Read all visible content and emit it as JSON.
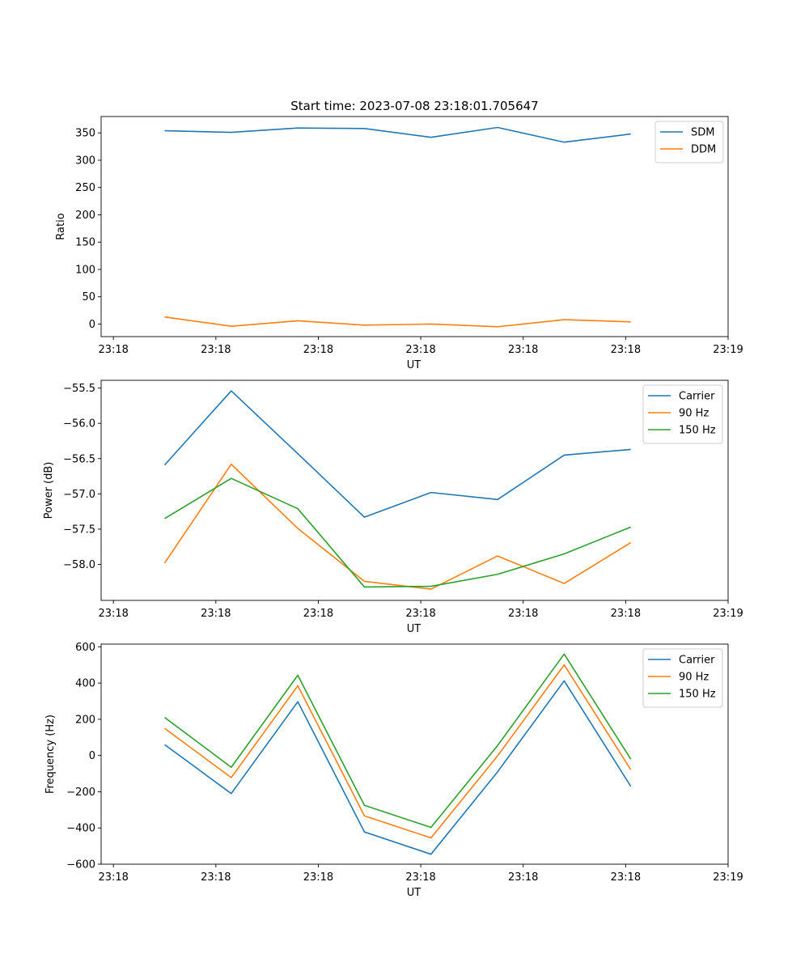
{
  "title": "Start time: 2023-07-08 23:18:01.705647",
  "colors": {
    "c0": "#1f77b4",
    "c1": "#ff7f0e",
    "c2": "#2ca02c"
  },
  "chart_data": [
    {
      "type": "line",
      "xlabel": "UT",
      "ylabel": "Ratio",
      "x_tick_labels": [
        "23:18",
        "23:18",
        "23:18",
        "23:18",
        "23:18",
        "23:18",
        "23:19"
      ],
      "x_tick_values": [
        0,
        1,
        2,
        3,
        4,
        5,
        6
      ],
      "xlim": [
        -0.12,
        6.0
      ],
      "x": [
        0.5,
        1.15,
        1.8,
        2.45,
        3.1,
        3.75,
        4.4,
        5.05
      ],
      "ylim": [
        -23,
        380
      ],
      "y_ticks": [
        0,
        50,
        100,
        150,
        200,
        250,
        300,
        350
      ],
      "y_tick_labels": [
        "0",
        "50",
        "100",
        "150",
        "200",
        "250",
        "300",
        "350"
      ],
      "legend": "top-right",
      "series": [
        {
          "name": "SDM",
          "color": "#1f77b4",
          "values": [
            354,
            351,
            359,
            358,
            342,
            360,
            333,
            348
          ]
        },
        {
          "name": "DDM",
          "color": "#ff7f0e",
          "values": [
            13,
            -4,
            6,
            -2,
            0,
            -5,
            8,
            4
          ]
        }
      ]
    },
    {
      "type": "line",
      "xlabel": "UT",
      "ylabel": "Power (dB)",
      "x_tick_labels": [
        "23:18",
        "23:18",
        "23:18",
        "23:18",
        "23:18",
        "23:18",
        "23:19"
      ],
      "x_tick_values": [
        0,
        1,
        2,
        3,
        4,
        5,
        6
      ],
      "xlim": [
        -0.12,
        6.0
      ],
      "x": [
        0.5,
        1.15,
        1.8,
        2.45,
        3.1,
        3.75,
        4.4,
        5.05
      ],
      "ylim": [
        -58.51,
        -55.39
      ],
      "y_ticks": [
        -58.0,
        -57.5,
        -57.0,
        -56.5,
        -56.0,
        -55.5
      ],
      "y_tick_labels": [
        "−58.0",
        "−57.5",
        "−57.0",
        "−56.5",
        "−56.0",
        "−55.5"
      ],
      "legend": "top-right",
      "series": [
        {
          "name": "Carrier",
          "color": "#1f77b4",
          "values": [
            -56.59,
            -55.54,
            -56.43,
            -57.33,
            -56.98,
            -57.08,
            -56.45,
            -56.37
          ]
        },
        {
          "name": "90 Hz",
          "color": "#ff7f0e",
          "values": [
            -57.98,
            -56.58,
            -57.49,
            -58.24,
            -58.35,
            -57.88,
            -58.27,
            -57.69
          ]
        },
        {
          "name": "150 Hz",
          "color": "#2ca02c",
          "values": [
            -57.35,
            -56.78,
            -57.21,
            -58.32,
            -58.31,
            -58.14,
            -57.85,
            -57.47
          ]
        }
      ]
    },
    {
      "type": "line",
      "xlabel": "UT",
      "ylabel": "Frequency (Hz)",
      "x_tick_labels": [
        "23:18",
        "23:18",
        "23:18",
        "23:18",
        "23:18",
        "23:18",
        "23:19"
      ],
      "x_tick_values": [
        0,
        1,
        2,
        3,
        4,
        5,
        6
      ],
      "xlim": [
        -0.12,
        6.0
      ],
      "x": [
        0.5,
        1.15,
        1.8,
        2.45,
        3.1,
        3.75,
        4.4,
        5.05
      ],
      "ylim": [
        -600,
        615
      ],
      "y_ticks": [
        -600,
        -400,
        -200,
        0,
        200,
        400,
        600
      ],
      "y_tick_labels": [
        "−600",
        "−400",
        "−200",
        "0",
        "200",
        "400",
        "600"
      ],
      "legend": "top-right",
      "series": [
        {
          "name": "Carrier",
          "color": "#1f77b4",
          "values": [
            60,
            -210,
            297,
            -422,
            -545,
            -90,
            412,
            -170
          ]
        },
        {
          "name": "90 Hz",
          "color": "#ff7f0e",
          "values": [
            150,
            -122,
            385,
            -333,
            -455,
            -2,
            500,
            -78
          ]
        },
        {
          "name": "150 Hz",
          "color": "#2ca02c",
          "values": [
            210,
            -65,
            443,
            -275,
            -397,
            55,
            560,
            -20
          ]
        }
      ]
    }
  ]
}
